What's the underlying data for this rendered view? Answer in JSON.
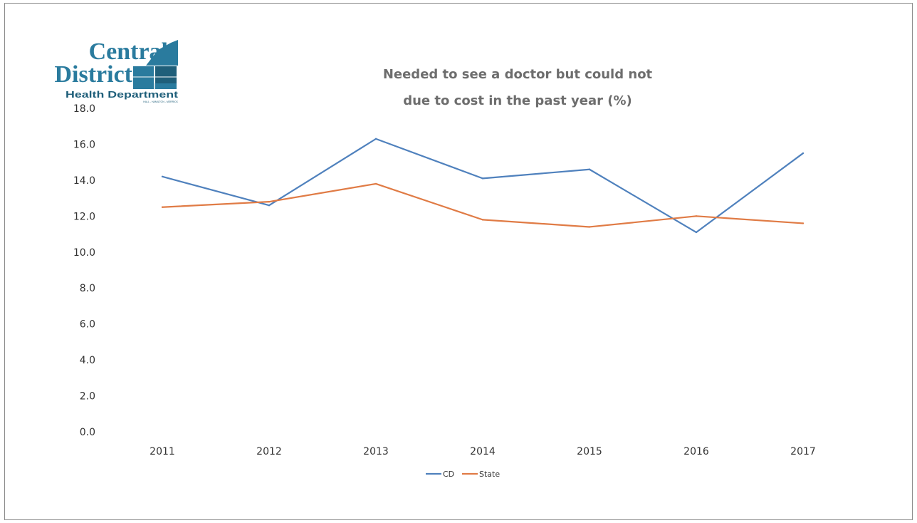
{
  "logo": {
    "line1": "Central",
    "line2": "District",
    "line3": "Health Department",
    "tagline": "HALL - HAMILTON - MERRICK",
    "color": "#2a7b9e",
    "accent": "#1f5f7a"
  },
  "chart_data": {
    "type": "line",
    "title_lines": [
      "Needed to see a doctor but could not",
      "due to cost in the past year (%)"
    ],
    "categories": [
      "2011",
      "2012",
      "2013",
      "2014",
      "2015",
      "2016",
      "2017"
    ],
    "series": [
      {
        "name": "CD",
        "color": "#4f81bd",
        "values": [
          14.2,
          12.6,
          16.3,
          14.1,
          14.6,
          11.1,
          15.5
        ]
      },
      {
        "name": "State",
        "color": "#e07b45",
        "values": [
          12.5,
          12.8,
          13.8,
          11.8,
          11.4,
          12.0,
          11.6
        ]
      }
    ],
    "ylim": [
      0,
      18
    ],
    "yticks": [
      "0.0",
      "2.0",
      "4.0",
      "6.0",
      "8.0",
      "10.0",
      "12.0",
      "14.0",
      "16.0",
      "18.0"
    ],
    "grid": false,
    "legend_position": "bottom"
  }
}
